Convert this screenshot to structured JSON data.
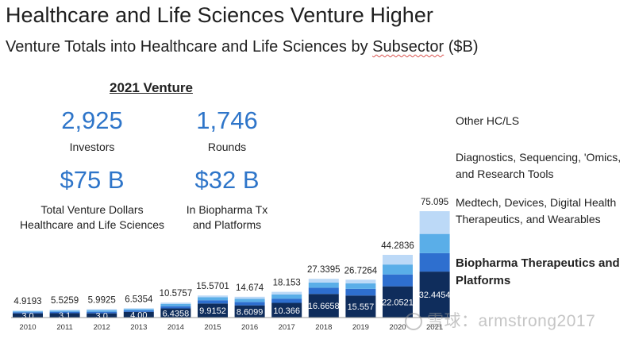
{
  "header": {
    "title": "Healthcare and Life Sciences Venture Higher",
    "subtitle_pre": "Venture Totals into Healthcare and Life Sciences by ",
    "subtitle_word": "Subsector",
    "subtitle_post": " ($B)"
  },
  "stats": {
    "heading": "2021 Venture",
    "investors_value": "2,925",
    "investors_label": "Investors",
    "rounds_value": "1,746",
    "rounds_label": "Rounds",
    "dollars_value": "$75 B",
    "dollars_label_1": "Total Venture Dollars",
    "dollars_label_2": "Healthcare and Life Sciences",
    "biopharma_value": "$32 B",
    "biopharma_label_1": "In Biopharma Tx",
    "biopharma_label_2": "and Platforms"
  },
  "legend": {
    "other": "Other HC/LS",
    "diagnostics_1": "Diagnostics, Sequencing, 'Omics,",
    "diagnostics_2": "and Research Tools",
    "medtech_1": "Medtech, Devices, Digital Health",
    "medtech_2": "Therapeutics, and Wearables",
    "biopharma_1": "Biopharma Therapeutics and",
    "biopharma_2": "Platforms"
  },
  "watermark": "雪球：armstrong2017",
  "chart_data": {
    "type": "bar",
    "stacked": true,
    "categories": [
      "2010",
      "2011",
      "2012",
      "2013",
      "2014",
      "2015",
      "2016",
      "2017",
      "2018",
      "2019",
      "2020",
      "2021"
    ],
    "totals": [
      4.9193,
      5.5259,
      5.9925,
      6.5354,
      10.5757,
      15.5701,
      14.674,
      18.153,
      27.3395,
      26.7264,
      44.2836,
      75.095
    ],
    "total_labels": [
      "4.9193",
      "5.5259",
      "5.9925",
      "6.5354",
      "10.5757",
      "15.5701",
      "14.674",
      "18.153",
      "27.3395",
      "26.7264",
      "44.2836",
      "75.095"
    ],
    "series": [
      {
        "name": "Biopharma Therapeutics and Platforms",
        "color": "#0f2d5c",
        "values": [
          3.0,
          3.1,
          3.0,
          4.0,
          6.4358,
          9.9152,
          8.6099,
          10.366,
          16.6658,
          15.557,
          22.0521,
          32.4454
        ],
        "labels": [
          "3.0",
          "3.1",
          "3.0",
          "4.00",
          "6.4358",
          "9.9152",
          "8.6099",
          "10.366",
          "16.6658",
          "15.557",
          "22.0521",
          "32.4454"
        ]
      },
      {
        "name": "Medtech, Devices, Digital Health Therapeutics, and Wearables",
        "color": "#2e6fcf",
        "values": [
          0.8,
          1.0,
          1.1,
          1.0,
          1.6,
          2.3,
          2.4,
          3.0,
          4.4,
          4.7,
          8.4,
          13.0
        ]
      },
      {
        "name": "Diagnostics, Sequencing, 'Omics, and Research Tools",
        "color": "#5aaee8",
        "values": [
          0.6,
          0.8,
          1.1,
          0.9,
          1.5,
          2.2,
          2.3,
          3.0,
          3.6,
          3.9,
          7.0,
          13.6
        ]
      },
      {
        "name": "Other HC/LS",
        "color": "#bcd9f7",
        "values": [
          0.5193,
          0.6259,
          0.7925,
          0.6354,
          1.0399,
          1.1549,
          1.3641,
          1.787,
          2.6737,
          2.5694,
          6.8315,
          16.0496
        ]
      }
    ],
    "ylim": [
      0,
      80
    ]
  }
}
